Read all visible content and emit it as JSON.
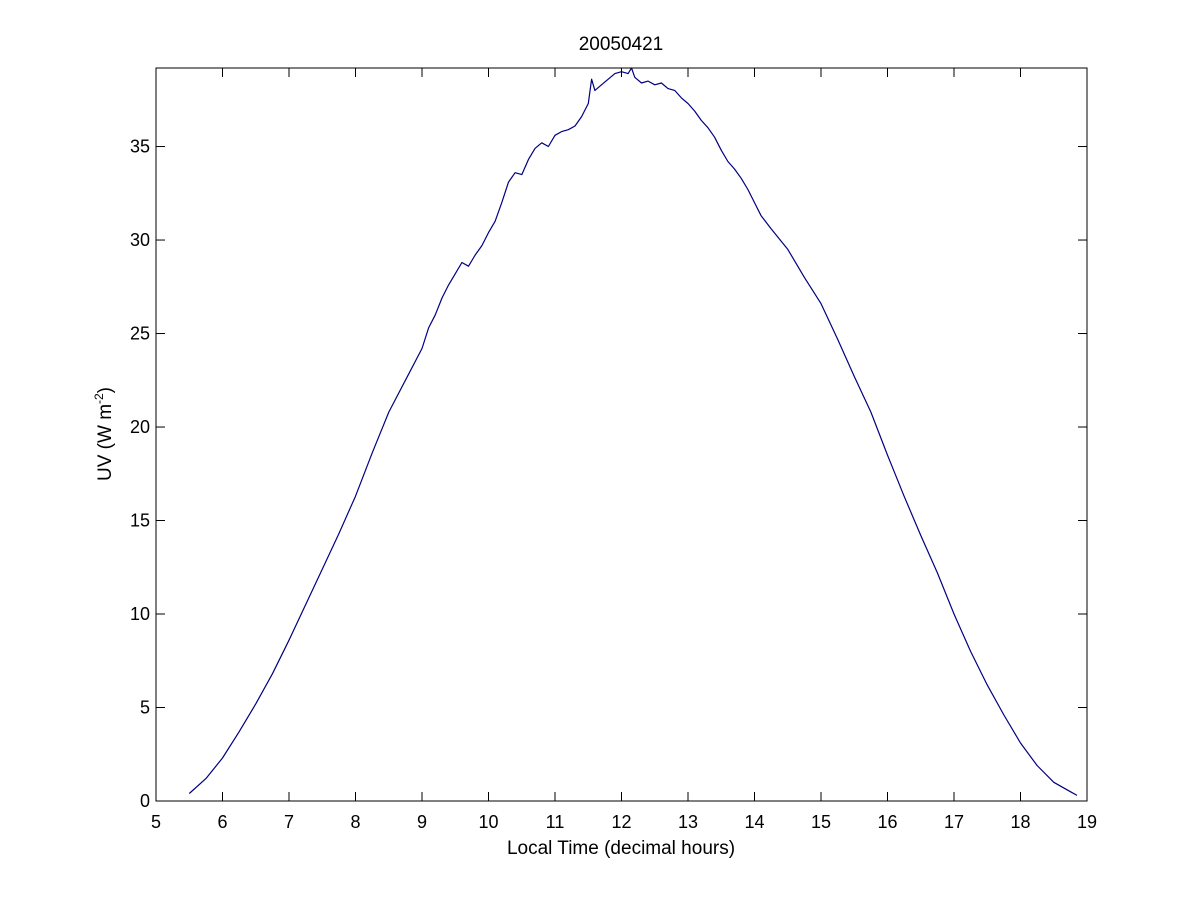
{
  "chart_data": {
    "type": "line",
    "title": "20050421",
    "xlabel": "Local Time (decimal hours)",
    "ylabel": {
      "main": "UV (W m",
      "sup": "-2",
      "close": ")"
    },
    "xlim": [
      5,
      19
    ],
    "ylim": [
      0,
      39.2
    ],
    "xticks": [
      "5",
      "6",
      "7",
      "8",
      "9",
      "10",
      "11",
      "12",
      "13",
      "14",
      "15",
      "16",
      "17",
      "18",
      "19"
    ],
    "yticks": [
      "0",
      "5",
      "10",
      "15",
      "20",
      "25",
      "30",
      "35"
    ],
    "grid": false,
    "series": [
      {
        "color": "#000080",
        "x": [
          5.5,
          5.75,
          6.0,
          6.25,
          6.5,
          6.75,
          7.0,
          7.25,
          7.5,
          7.75,
          8.0,
          8.25,
          8.5,
          8.75,
          9.0,
          9.1,
          9.2,
          9.3,
          9.4,
          9.5,
          9.6,
          9.7,
          9.8,
          9.9,
          10.0,
          10.1,
          10.2,
          10.3,
          10.4,
          10.5,
          10.6,
          10.7,
          10.8,
          10.9,
          11.0,
          11.1,
          11.2,
          11.3,
          11.4,
          11.5,
          11.55,
          11.6,
          11.7,
          11.8,
          11.9,
          12.0,
          12.1,
          12.15,
          12.2,
          12.3,
          12.4,
          12.5,
          12.6,
          12.7,
          12.8,
          12.9,
          13.0,
          13.1,
          13.2,
          13.3,
          13.4,
          13.5,
          13.6,
          13.7,
          13.8,
          13.9,
          14.0,
          14.1,
          14.25,
          14.5,
          14.75,
          15.0,
          15.25,
          15.5,
          15.75,
          16.0,
          16.25,
          16.5,
          16.75,
          17.0,
          17.25,
          17.5,
          17.75,
          18.0,
          18.25,
          18.5,
          18.75,
          18.85
        ],
        "y": [
          0.4,
          1.2,
          2.3,
          3.7,
          5.2,
          6.8,
          8.6,
          10.5,
          12.4,
          14.3,
          16.3,
          18.6,
          20.8,
          22.5,
          24.2,
          25.3,
          26.0,
          26.9,
          27.6,
          28.2,
          28.8,
          28.6,
          29.2,
          29.7,
          30.4,
          31.0,
          32.0,
          33.1,
          33.6,
          33.5,
          34.3,
          34.9,
          35.2,
          35.0,
          35.6,
          35.8,
          35.9,
          36.1,
          36.6,
          37.3,
          38.6,
          38.0,
          38.3,
          38.6,
          38.9,
          39.0,
          38.9,
          39.2,
          38.7,
          38.4,
          38.5,
          38.3,
          38.4,
          38.1,
          38.0,
          37.6,
          37.3,
          36.9,
          36.4,
          36.0,
          35.5,
          34.8,
          34.2,
          33.8,
          33.3,
          32.7,
          32.0,
          31.3,
          30.6,
          29.5,
          28.0,
          26.6,
          24.7,
          22.7,
          20.8,
          18.5,
          16.3,
          14.2,
          12.2,
          10.0,
          8.0,
          6.2,
          4.6,
          3.1,
          1.9,
          1.0,
          0.5,
          0.3
        ]
      }
    ]
  }
}
